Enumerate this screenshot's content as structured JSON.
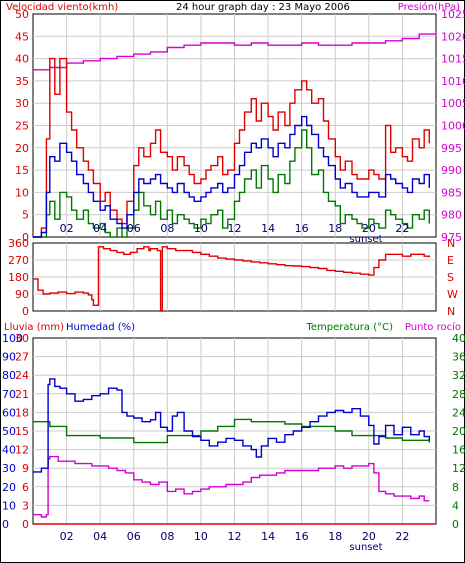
{
  "colors": {
    "wind": "#e00000",
    "wind_avg": "#0000cc",
    "wind_green": "#007700",
    "pressure": "#d400d4",
    "direction": "#e00000",
    "humidity": "#0000cc",
    "temperature": "#007700",
    "dewpoint": "#d400d4",
    "rain": "#e00000",
    "grid": "#cccccc",
    "frame": "#000000"
  },
  "chart_data": [
    {
      "type": "line",
      "title": "24 hour graph day : 23 Mayo 2006",
      "left_axis_label": "Velocidad viento(kmh)",
      "right_axis_label": "Presión(hPa)",
      "x_ticks": [
        "02",
        "04",
        "06",
        "08",
        "10",
        "12",
        "14",
        "16",
        "18",
        "20",
        "22"
      ],
      "x_note": "sunset",
      "x_range_hours": [
        0,
        24
      ],
      "left_range": [
        0,
        50
      ],
      "left_ticks": [
        "0",
        "5",
        "10",
        "15",
        "20",
        "25",
        "30",
        "35",
        "40",
        "45",
        "50"
      ],
      "right_range": [
        975,
        1025
      ],
      "right_ticks": [
        "975",
        "980",
        "985",
        "990",
        "995",
        "1000",
        "1005",
        "1010",
        "1015",
        "1020",
        "1025"
      ],
      "grid": true,
      "series": [
        {
          "key": "gust",
          "axis": "left",
          "x": [
            0,
            0.5,
            0.8,
            1.0,
            1.3,
            1.6,
            2.0,
            2.3,
            2.6,
            3.0,
            3.3,
            3.6,
            4.0,
            4.3,
            4.6,
            5.0,
            5.3,
            5.6,
            6.0,
            6.3,
            6.6,
            7.0,
            7.3,
            7.6,
            8.0,
            8.3,
            8.6,
            9.0,
            9.3,
            9.6,
            10.0,
            10.3,
            10.6,
            11.0,
            11.3,
            11.6,
            12.0,
            12.3,
            12.6,
            13.0,
            13.3,
            13.6,
            14.0,
            14.3,
            14.6,
            15.0,
            15.3,
            15.6,
            16.0,
            16.3,
            16.6,
            17.0,
            17.3,
            17.6,
            18.0,
            18.3,
            18.6,
            19.0,
            19.3,
            19.6,
            20.0,
            20.3,
            20.6,
            21.0,
            21.3,
            21.6,
            22.0,
            22.3,
            22.6,
            23.0,
            23.3,
            23.6
          ],
          "y": [
            0,
            2,
            22,
            40,
            32,
            40,
            28,
            24,
            20,
            17,
            15,
            12,
            8,
            10,
            6,
            4,
            3,
            8,
            16,
            20,
            18,
            21,
            24,
            19,
            18,
            15,
            18,
            16,
            14,
            12,
            13,
            15,
            16,
            18,
            14,
            15,
            21,
            24,
            28,
            31,
            26,
            30,
            27,
            24,
            28,
            25,
            30,
            33,
            35,
            33,
            30,
            31,
            26,
            22,
            18,
            15,
            17,
            14,
            13,
            13,
            15,
            14,
            13,
            25,
            19,
            20,
            18,
            17,
            22,
            20,
            24,
            21
          ]
        },
        {
          "key": "average",
          "axis": "left",
          "x": [
            0,
            0.5,
            0.8,
            1.0,
            1.3,
            1.6,
            2.0,
            2.3,
            2.6,
            3.0,
            3.3,
            3.6,
            4.0,
            4.3,
            4.6,
            5.0,
            5.3,
            5.6,
            6.0,
            6.3,
            6.6,
            7.0,
            7.3,
            7.6,
            8.0,
            8.3,
            8.6,
            9.0,
            9.3,
            9.6,
            10.0,
            10.3,
            10.6,
            11.0,
            11.3,
            11.6,
            12.0,
            12.3,
            12.6,
            13.0,
            13.3,
            13.6,
            14.0,
            14.3,
            14.6,
            15.0,
            15.3,
            15.6,
            16.0,
            16.3,
            16.6,
            17.0,
            17.3,
            17.6,
            18.0,
            18.3,
            18.6,
            19.0,
            19.3,
            19.6,
            20.0,
            20.3,
            20.6,
            21.0,
            21.3,
            21.6,
            22.0,
            22.3,
            22.6,
            23.0,
            23.3,
            23.6
          ],
          "y": [
            0,
            1,
            10,
            18,
            17,
            21,
            19,
            17,
            14,
            12,
            10,
            8,
            6,
            7,
            4,
            3,
            2,
            5,
            10,
            13,
            12,
            13,
            14,
            12,
            11,
            10,
            12,
            10,
            9,
            8,
            9,
            10,
            11,
            12,
            10,
            11,
            14,
            16,
            19,
            21,
            20,
            22,
            20,
            18,
            21,
            20,
            23,
            25,
            27,
            25,
            23,
            20,
            18,
            16,
            13,
            11,
            12,
            10,
            9,
            9,
            10,
            10,
            9,
            14,
            13,
            12,
            11,
            10,
            13,
            12,
            14,
            11
          ]
        },
        {
          "key": "minimum",
          "axis": "left",
          "x": [
            0,
            0.5,
            0.8,
            1.0,
            1.3,
            1.6,
            2.0,
            2.3,
            2.6,
            3.0,
            3.3,
            3.6,
            4.0,
            4.3,
            4.6,
            5.0,
            5.3,
            5.6,
            6.0,
            6.3,
            6.6,
            7.0,
            7.3,
            7.6,
            8.0,
            8.3,
            8.6,
            9.0,
            9.3,
            9.6,
            10.0,
            10.3,
            10.6,
            11.0,
            11.3,
            11.6,
            12.0,
            12.3,
            12.6,
            13.0,
            13.3,
            13.6,
            14.0,
            14.3,
            14.6,
            15.0,
            15.3,
            15.6,
            16.0,
            16.3,
            16.6,
            17.0,
            17.3,
            17.6,
            18.0,
            18.3,
            18.6,
            19.0,
            19.3,
            19.6,
            20.0,
            20.3,
            20.6,
            21.0,
            21.3,
            21.6,
            22.0,
            22.3,
            22.6,
            23.0,
            23.3,
            23.6
          ],
          "y": [
            0,
            0,
            5,
            8,
            4,
            10,
            9,
            6,
            4,
            6,
            3,
            2,
            3,
            1,
            0,
            2,
            0,
            2,
            6,
            10,
            7,
            5,
            8,
            4,
            6,
            3,
            5,
            4,
            3,
            2,
            4,
            3,
            5,
            6,
            2,
            4,
            8,
            10,
            13,
            15,
            11,
            16,
            13,
            10,
            14,
            12,
            17,
            20,
            24,
            20,
            14,
            15,
            10,
            8,
            7,
            3,
            5,
            4,
            3,
            2,
            4,
            3,
            2,
            6,
            5,
            4,
            3,
            2,
            5,
            4,
            6,
            3
          ]
        },
        {
          "key": "pressure",
          "axis": "right",
          "x": [
            0,
            1,
            2,
            3,
            4,
            5,
            6,
            7,
            8,
            9,
            10,
            11,
            12,
            13,
            14,
            15,
            16,
            17,
            18,
            19,
            20,
            21,
            22,
            23,
            24
          ],
          "y": [
            1012.5,
            1013,
            1014,
            1014.5,
            1015,
            1015.5,
            1016,
            1016.5,
            1017.5,
            1018,
            1018.5,
            1018.5,
            1018,
            1018.5,
            1018,
            1018,
            1018.5,
            1018,
            1018,
            1018.5,
            1018.5,
            1019,
            1019.5,
            1020.5,
            1021
          ]
        }
      ]
    },
    {
      "type": "line",
      "left_ticks": [
        "0",
        "90",
        "180",
        "270",
        "360"
      ],
      "left_range": [
        0,
        360
      ],
      "right_ticks": [
        "N",
        "W",
        "S",
        "E",
        "N"
      ],
      "x_ticks": [
        "02",
        "04",
        "06",
        "08",
        "10",
        "12",
        "14",
        "16",
        "18",
        "20",
        "22"
      ],
      "grid": true,
      "series": [
        {
          "key": "direction",
          "x": [
            0,
            0.3,
            0.6,
            1.0,
            1.5,
            2.0,
            2.5,
            3.0,
            3.3,
            3.5,
            3.6,
            3.9,
            4.2,
            4.6,
            5.0,
            5.4,
            5.8,
            6.2,
            6.6,
            6.9,
            7.0,
            7.4,
            7.6,
            7.7,
            8.0,
            8.5,
            9.0,
            9.5,
            10.0,
            10.5,
            11.0,
            11.5,
            12.0,
            12.5,
            13.0,
            13.5,
            14.0,
            14.5,
            15.0,
            15.5,
            16.0,
            16.5,
            17.0,
            17.5,
            18.0,
            18.5,
            19.0,
            19.5,
            20.0,
            20.3,
            20.6,
            21.0,
            21.5,
            22.0,
            22.5,
            23.0,
            23.3,
            23.6
          ],
          "y": [
            170,
            110,
            90,
            95,
            100,
            92,
            100,
            95,
            85,
            60,
            30,
            340,
            330,
            320,
            310,
            300,
            310,
            330,
            340,
            320,
            330,
            320,
            0,
            340,
            330,
            320,
            320,
            310,
            300,
            290,
            280,
            275,
            270,
            265,
            260,
            255,
            250,
            245,
            240,
            238,
            235,
            230,
            225,
            215,
            210,
            205,
            200,
            195,
            190,
            230,
            270,
            300,
            300,
            290,
            300,
            300,
            290,
            285
          ]
        }
      ]
    },
    {
      "type": "line",
      "left_axis_label": "Lluvia (mm)",
      "humidity_axis_label": "Humedad (%)",
      "right_axis_label": "Temperatura (°C)",
      "right_axis_label_2": "Punto rocío",
      "rain_ticks": [
        "0",
        "3",
        "6",
        "9",
        "12",
        "15",
        "18",
        "21",
        "24",
        "27",
        "30"
      ],
      "rain_range": [
        0,
        30
      ],
      "humidity_ticks": [
        "0",
        "10",
        "20",
        "30",
        "40",
        "50",
        "60",
        "70",
        "80",
        "90",
        "100"
      ],
      "humidity_range": [
        0,
        100
      ],
      "temperature_ticks": [
        "0",
        "4",
        "8",
        "12",
        "16",
        "20",
        "24",
        "28",
        "32",
        "36",
        "40"
      ],
      "temperature_range": [
        0,
        40
      ],
      "x_ticks": [
        "02",
        "04",
        "06",
        "08",
        "10",
        "12",
        "14",
        "16",
        "18",
        "20",
        "22"
      ],
      "x_note": "sunset",
      "grid": true,
      "series": [
        {
          "key": "humidity",
          "axis": "humidity",
          "x": [
            0,
            0.5,
            0.8,
            0.9,
            1.0,
            1.3,
            1.6,
            2.0,
            2.5,
            3.0,
            3.5,
            4.0,
            4.5,
            5.0,
            5.3,
            5.6,
            6.0,
            6.5,
            7.0,
            7.3,
            7.6,
            8.0,
            8.3,
            8.6,
            9.0,
            9.5,
            10.0,
            10.5,
            11.0,
            11.5,
            12.0,
            12.5,
            13.0,
            13.3,
            13.6,
            14.0,
            14.5,
            15.0,
            15.5,
            16.0,
            16.5,
            17.0,
            17.5,
            18.0,
            18.5,
            19.0,
            19.5,
            20.0,
            20.3,
            20.6,
            21.0,
            21.5,
            22.0,
            22.5,
            23.0,
            23.3,
            23.6
          ],
          "y": [
            28,
            30,
            30,
            75,
            78,
            74,
            73,
            70,
            66,
            67,
            69,
            70,
            73,
            72,
            60,
            58,
            57,
            55,
            56,
            60,
            52,
            50,
            58,
            60,
            50,
            47,
            45,
            42,
            44,
            46,
            45,
            42,
            40,
            36,
            42,
            46,
            44,
            48,
            50,
            52,
            55,
            58,
            60,
            61,
            60,
            62,
            58,
            53,
            43,
            47,
            53,
            48,
            52,
            48,
            50,
            47,
            45
          ]
        },
        {
          "key": "temperature",
          "axis": "temperature",
          "x": [
            0,
            1,
            2,
            3,
            4,
            5,
            6,
            7,
            8,
            9,
            10,
            11,
            12,
            13,
            14,
            15,
            16,
            17,
            18,
            19,
            20,
            21,
            22,
            23,
            23.6
          ],
          "y": [
            22,
            21,
            19,
            19,
            18.5,
            18.5,
            17.5,
            17.5,
            19,
            19,
            20,
            21,
            22.5,
            22,
            22,
            21.5,
            21,
            21,
            20,
            19,
            19,
            18.5,
            18,
            18,
            17.5
          ]
        },
        {
          "key": "dewpoint",
          "axis": "temperature",
          "x": [
            0,
            0.5,
            0.8,
            0.9,
            1.0,
            1.5,
            2.0,
            2.5,
            3.0,
            3.5,
            4.0,
            4.5,
            5.0,
            5.5,
            6.0,
            6.5,
            7.0,
            7.5,
            8.0,
            8.5,
            9.0,
            9.5,
            10.0,
            10.5,
            11.0,
            11.5,
            12.0,
            12.5,
            13.0,
            13.5,
            14.0,
            14.5,
            15.0,
            15.5,
            16.0,
            16.5,
            17.0,
            17.5,
            18.0,
            18.5,
            19.0,
            19.5,
            20.0,
            20.3,
            20.6,
            21.0,
            21.5,
            22.0,
            22.5,
            23.0,
            23.3,
            23.6
          ],
          "y": [
            2,
            1.5,
            2,
            14,
            14.5,
            13.5,
            13.5,
            13,
            13,
            12.5,
            12.5,
            12,
            11.5,
            11,
            9.5,
            9,
            8.5,
            9,
            7,
            7.5,
            6.5,
            7,
            7.5,
            8,
            8,
            8.5,
            8.5,
            9,
            10,
            10.5,
            10.5,
            11,
            11.5,
            11.5,
            11.5,
            11.5,
            12,
            12,
            12.5,
            12,
            12.5,
            12.5,
            13,
            11,
            7,
            6.5,
            6,
            6,
            5.5,
            6,
            5,
            5
          ]
        },
        {
          "key": "rain",
          "axis": "rain",
          "x": [
            0,
            24
          ],
          "y": [
            0,
            0
          ]
        }
      ]
    }
  ]
}
